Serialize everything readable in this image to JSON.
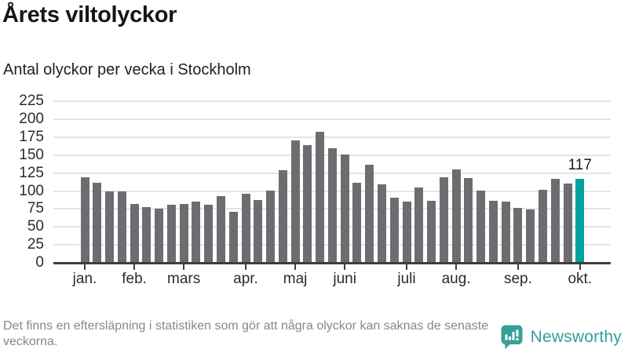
{
  "header": {
    "title": "Årets viltolyckor",
    "subtitle": "Antal olyckor per vecka i Stockholm"
  },
  "chart_data": {
    "type": "bar",
    "title": "Årets viltolyckor",
    "subtitle": "Antal olyckor per vecka i Stockholm",
    "xlabel": "",
    "ylabel": "",
    "ylim": [
      0,
      240
    ],
    "grid": "horizontal",
    "y_ticks": [
      0,
      25,
      50,
      75,
      100,
      125,
      150,
      175,
      200,
      225
    ],
    "values": [
      119,
      111,
      100,
      100,
      82,
      78,
      75,
      81,
      82,
      85,
      81,
      93,
      71,
      96,
      87,
      101,
      129,
      171,
      164,
      183,
      160,
      151,
      112,
      137,
      109,
      91,
      85,
      105,
      86,
      119,
      130,
      118,
      101,
      86,
      85,
      76,
      74,
      102,
      117,
      110,
      117
    ],
    "highlight_index": 40,
    "highlight_label": "117",
    "month_ticks": [
      {
        "label": "jan.",
        "bar_index": 0
      },
      {
        "label": "feb.",
        "bar_index": 4
      },
      {
        "label": "mars",
        "bar_index": 8
      },
      {
        "label": "apr.",
        "bar_index": 13
      },
      {
        "label": "maj",
        "bar_index": 17
      },
      {
        "label": "juni",
        "bar_index": 21
      },
      {
        "label": "juli",
        "bar_index": 26
      },
      {
        "label": "aug.",
        "bar_index": 30
      },
      {
        "label": "sep.",
        "bar_index": 35
      },
      {
        "label": "okt.",
        "bar_index": 40
      }
    ],
    "colors": {
      "bar": "#6d6c71",
      "highlight": "#00a29b",
      "gridline": "#e4e4e4",
      "axis": "#3e3e3e"
    }
  },
  "footer": {
    "note": "Det finns en eftersläpning i statistiken som gör att några olyckor kan saknas de senaste veckorna.",
    "brand": "Newsworthy",
    "brand_color": "#35a098"
  }
}
